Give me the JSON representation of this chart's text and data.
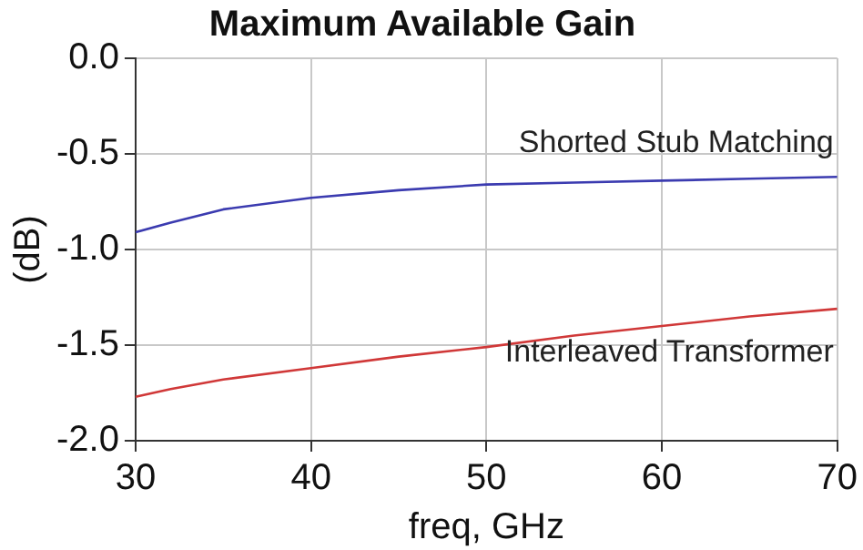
{
  "chart_data": {
    "type": "line",
    "title": "Maximum Available Gain",
    "xlabel": "freq, GHz",
    "ylabel": "(dB)",
    "xlim": [
      30,
      70
    ],
    "xticks": [
      30,
      40,
      50,
      60,
      70
    ],
    "ylim": [
      -2.0,
      0.0
    ],
    "yticks": [
      {
        "value": -2.0,
        "label": "-2.0"
      },
      {
        "value": -1.5,
        "label": "-1.5"
      },
      {
        "value": -1.0,
        "label": "-1.0"
      },
      {
        "value": -0.5,
        "label": "-0.5"
      },
      {
        "value": 0.0,
        "label": "0.0"
      }
    ],
    "grid": true,
    "legend": false,
    "marker": "none",
    "line_style": "solid",
    "x": [
      30,
      32,
      35,
      40,
      45,
      50,
      55,
      60,
      65,
      70
    ],
    "series": [
      {
        "name": "Shorted Stub Matching",
        "color": "#3b3bb0",
        "values": [
          -0.91,
          -0.86,
          -0.79,
          -0.73,
          -0.69,
          -0.66,
          -0.65,
          -0.64,
          -0.63,
          -0.62
        ]
      },
      {
        "name": "Interleaved Transformer",
        "color": "#d03838",
        "values": [
          -1.77,
          -1.73,
          -1.68,
          -1.62,
          -1.56,
          -1.51,
          -1.45,
          -1.4,
          -1.35,
          -1.31
        ]
      }
    ]
  }
}
